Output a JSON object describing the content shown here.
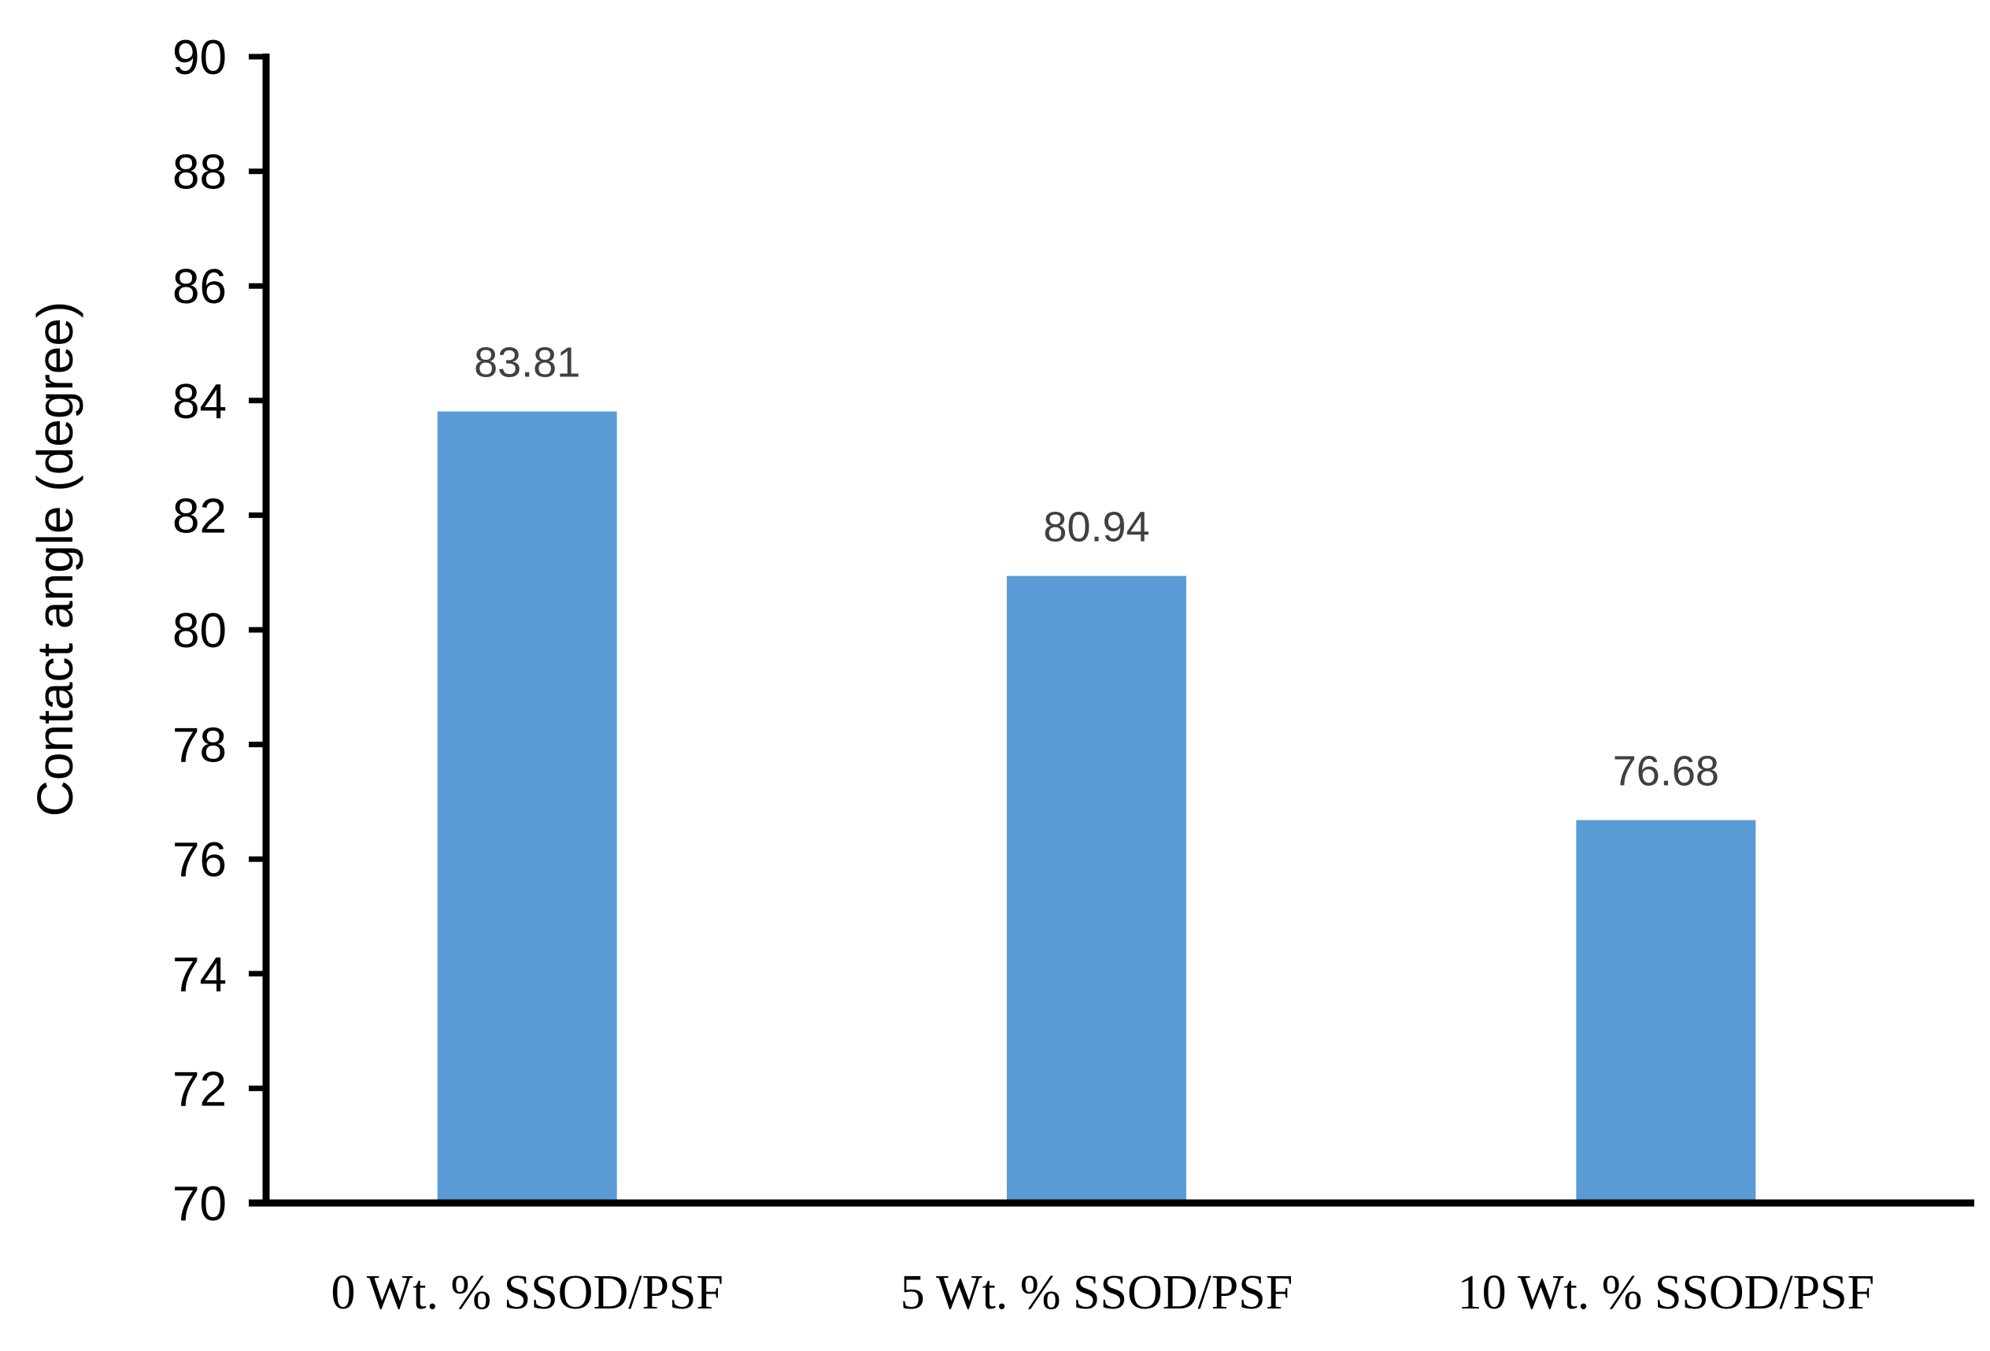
{
  "chart_data": {
    "type": "bar",
    "title": "",
    "xlabel": "",
    "ylabel": "Contact angle (degree)",
    "categories": [
      "0 Wt. % SSOD/PSF",
      "5 Wt. % SSOD/PSF",
      "10 Wt. % SSOD/PSF"
    ],
    "values": [
      83.81,
      80.94,
      76.68
    ],
    "data_labels": [
      "83.81",
      "80.94",
      "76.68"
    ],
    "ylim": [
      70,
      90
    ],
    "yticks": [
      70,
      72,
      74,
      76,
      78,
      80,
      82,
      84,
      86,
      88,
      90
    ],
    "grid": false,
    "legend": "none",
    "bar_color": "#5b9bd5",
    "axis_color": "#000000",
    "data_label_color": "#404040"
  }
}
